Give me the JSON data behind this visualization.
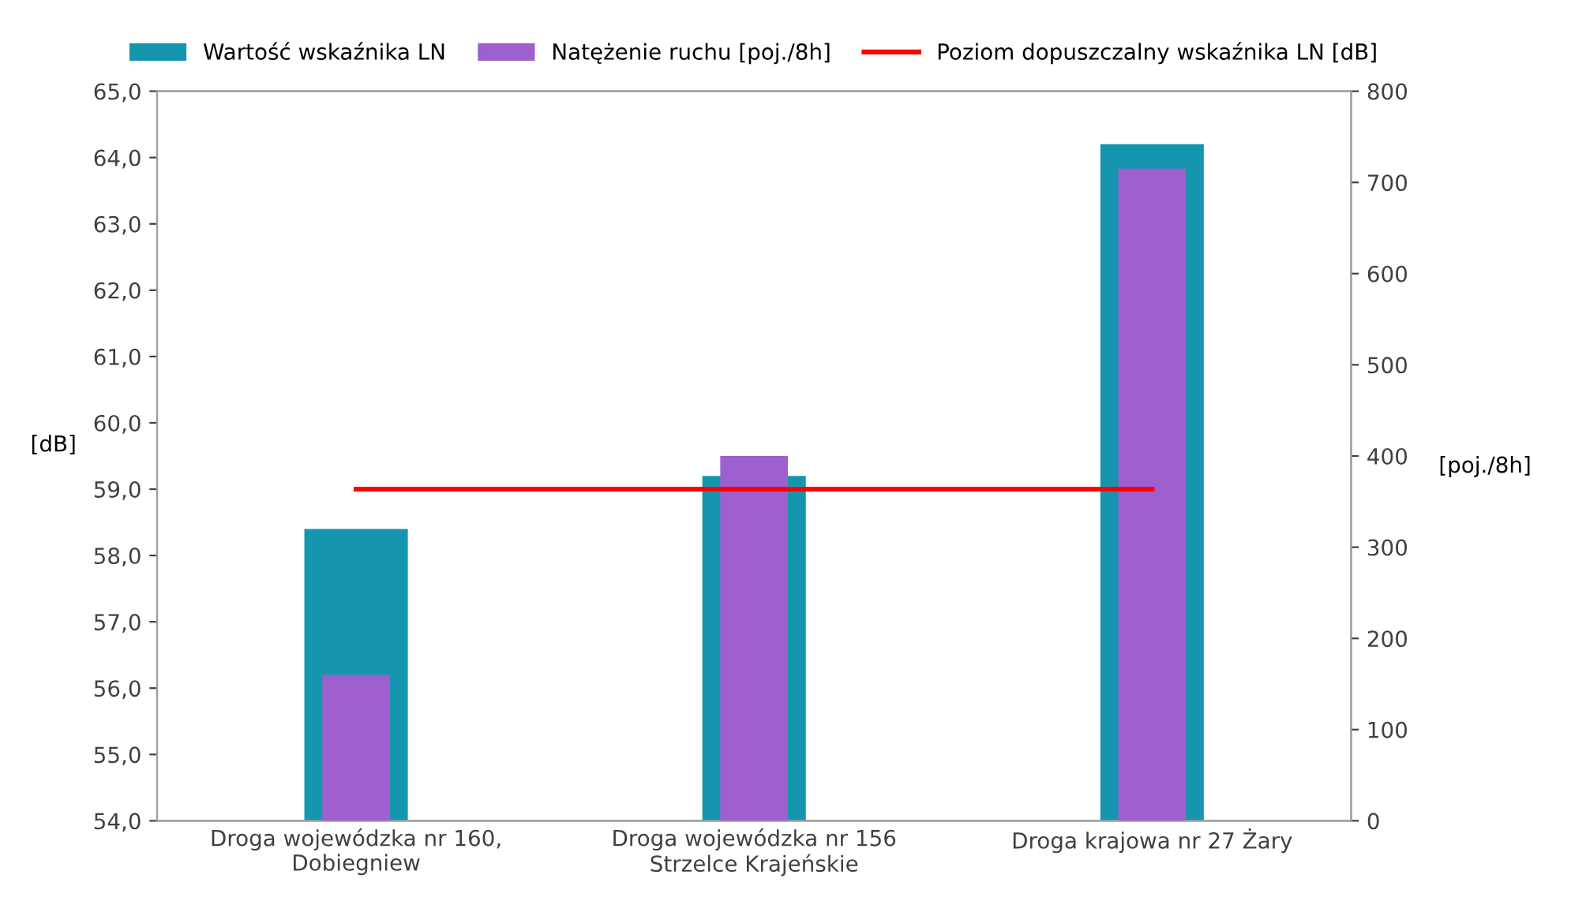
{
  "chart_data": {
    "type": "bar",
    "categories": [
      "Droga wojewódzka nr 160,\nDobiegniew",
      "Droga wojewódzka nr 156\nStrzelce Krajeńskie",
      "Droga krajowa nr 27 Żary"
    ],
    "series": [
      {
        "name": "Wartość wskaźnika LN",
        "color": "#1696ae",
        "values": [
          58.4,
          59.2,
          64.2
        ]
      },
      {
        "name": "Natężenie ruchu [poj./8h]",
        "color": "#9e5fcf",
        "axis": "y2",
        "values": [
          160,
          400,
          715
        ]
      },
      {
        "name": "Poziom dopuszczalny wskaźnika LN [dB]",
        "color": "#ff0000",
        "type": "line",
        "values": [
          59.0,
          59.0,
          59.0
        ]
      }
    ],
    "ylabel": "[dB]",
    "y2label": "[poj./8h]",
    "ylim": [
      54,
      65
    ],
    "yticks": [
      {
        "value": 54,
        "label": "54,0"
      },
      {
        "value": 55,
        "label": "55,0"
      },
      {
        "value": 56,
        "label": "56,0"
      },
      {
        "value": 57,
        "label": "57,0"
      },
      {
        "value": 58,
        "label": "58,0"
      },
      {
        "value": 59,
        "label": "59,0"
      },
      {
        "value": 60,
        "label": "60,0"
      },
      {
        "value": 61,
        "label": "61,0"
      },
      {
        "value": 62,
        "label": "62,0"
      },
      {
        "value": 63,
        "label": "63,0"
      },
      {
        "value": 64,
        "label": "64,0"
      },
      {
        "value": 65,
        "label": "65,0"
      }
    ],
    "y2lim": [
      0,
      800
    ],
    "y2ticks": [
      0,
      100,
      200,
      300,
      400,
      500,
      600,
      700,
      800
    ],
    "legend": "top",
    "grid": false,
    "marker": "none"
  }
}
